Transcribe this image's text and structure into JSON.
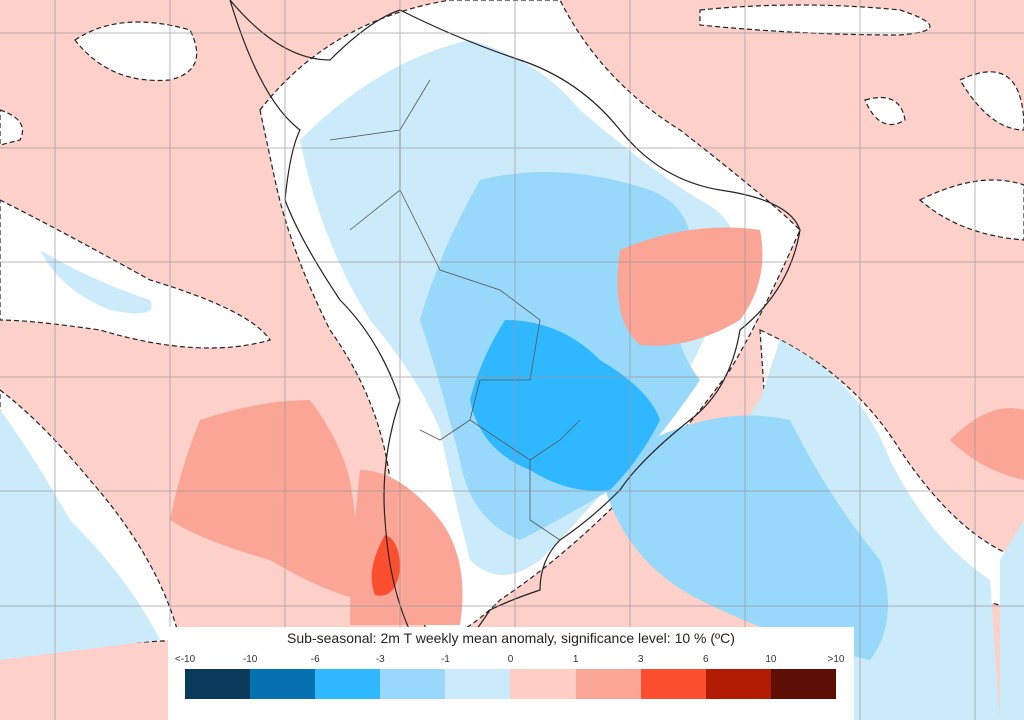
{
  "legend": {
    "title": "Sub-seasonal: 2m T weekly mean anomaly, significance level: 10 % (ºC)",
    "ticks": [
      "<-10",
      "-10",
      "-6",
      "-3",
      "-1",
      "0",
      "1",
      "3",
      "6",
      "10",
      ">10"
    ],
    "colors": [
      "#0a3a5c",
      "#0571b0",
      "#2fb8ff",
      "#97d8fb",
      "#cbebfb",
      "#fdcdc6",
      "#fba597",
      "#fb4f30",
      "#b11a03",
      "#5e0e04"
    ]
  }
}
